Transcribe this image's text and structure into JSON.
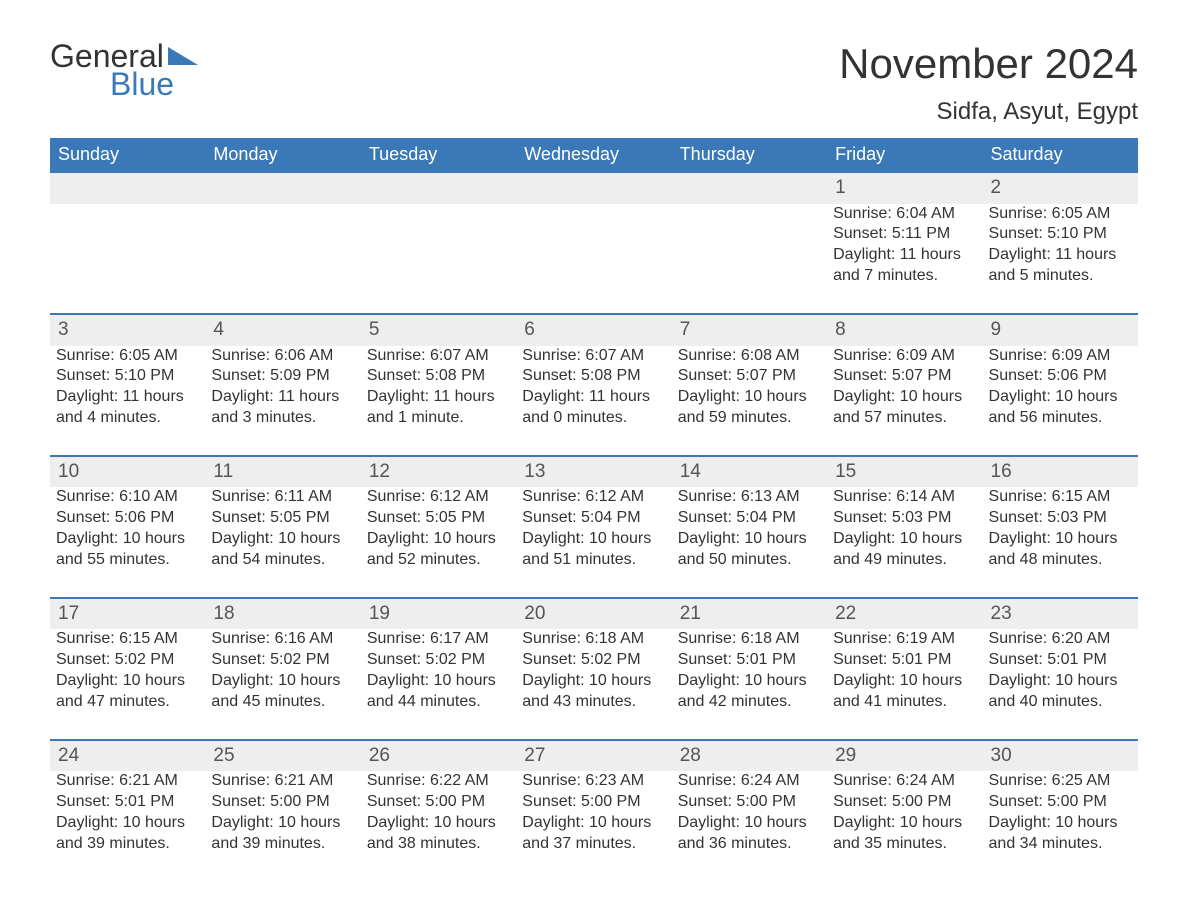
{
  "brand": {
    "general": "General",
    "blue": "Blue",
    "shape_color": "#3a78b8"
  },
  "title": "November 2024",
  "location": "Sidfa, Asyut, Egypt",
  "colors": {
    "header_bg": "#3a78b8",
    "header_text": "#ffffff",
    "day_header_bg": "#eeeeee",
    "row_border": "#3a78b8",
    "body_text": "#333333",
    "page_bg": "#ffffff"
  },
  "fonts": {
    "title_size_pt": 32,
    "location_size_pt": 18,
    "header_size_pt": 14,
    "daynum_size_pt": 14,
    "body_size_pt": 12
  },
  "layout": {
    "columns": 7,
    "rows": 5,
    "start_day_index": 5
  },
  "weekdays": [
    "Sunday",
    "Monday",
    "Tuesday",
    "Wednesday",
    "Thursday",
    "Friday",
    "Saturday"
  ],
  "days": [
    {
      "n": 1,
      "sunrise": "6:04 AM",
      "sunset": "5:11 PM",
      "daylight": "11 hours and 7 minutes."
    },
    {
      "n": 2,
      "sunrise": "6:05 AM",
      "sunset": "5:10 PM",
      "daylight": "11 hours and 5 minutes."
    },
    {
      "n": 3,
      "sunrise": "6:05 AM",
      "sunset": "5:10 PM",
      "daylight": "11 hours and 4 minutes."
    },
    {
      "n": 4,
      "sunrise": "6:06 AM",
      "sunset": "5:09 PM",
      "daylight": "11 hours and 3 minutes."
    },
    {
      "n": 5,
      "sunrise": "6:07 AM",
      "sunset": "5:08 PM",
      "daylight": "11 hours and 1 minute."
    },
    {
      "n": 6,
      "sunrise": "6:07 AM",
      "sunset": "5:08 PM",
      "daylight": "11 hours and 0 minutes."
    },
    {
      "n": 7,
      "sunrise": "6:08 AM",
      "sunset": "5:07 PM",
      "daylight": "10 hours and 59 minutes."
    },
    {
      "n": 8,
      "sunrise": "6:09 AM",
      "sunset": "5:07 PM",
      "daylight": "10 hours and 57 minutes."
    },
    {
      "n": 9,
      "sunrise": "6:09 AM",
      "sunset": "5:06 PM",
      "daylight": "10 hours and 56 minutes."
    },
    {
      "n": 10,
      "sunrise": "6:10 AM",
      "sunset": "5:06 PM",
      "daylight": "10 hours and 55 minutes."
    },
    {
      "n": 11,
      "sunrise": "6:11 AM",
      "sunset": "5:05 PM",
      "daylight": "10 hours and 54 minutes."
    },
    {
      "n": 12,
      "sunrise": "6:12 AM",
      "sunset": "5:05 PM",
      "daylight": "10 hours and 52 minutes."
    },
    {
      "n": 13,
      "sunrise": "6:12 AM",
      "sunset": "5:04 PM",
      "daylight": "10 hours and 51 minutes."
    },
    {
      "n": 14,
      "sunrise": "6:13 AM",
      "sunset": "5:04 PM",
      "daylight": "10 hours and 50 minutes."
    },
    {
      "n": 15,
      "sunrise": "6:14 AM",
      "sunset": "5:03 PM",
      "daylight": "10 hours and 49 minutes."
    },
    {
      "n": 16,
      "sunrise": "6:15 AM",
      "sunset": "5:03 PM",
      "daylight": "10 hours and 48 minutes."
    },
    {
      "n": 17,
      "sunrise": "6:15 AM",
      "sunset": "5:02 PM",
      "daylight": "10 hours and 47 minutes."
    },
    {
      "n": 18,
      "sunrise": "6:16 AM",
      "sunset": "5:02 PM",
      "daylight": "10 hours and 45 minutes."
    },
    {
      "n": 19,
      "sunrise": "6:17 AM",
      "sunset": "5:02 PM",
      "daylight": "10 hours and 44 minutes."
    },
    {
      "n": 20,
      "sunrise": "6:18 AM",
      "sunset": "5:02 PM",
      "daylight": "10 hours and 43 minutes."
    },
    {
      "n": 21,
      "sunrise": "6:18 AM",
      "sunset": "5:01 PM",
      "daylight": "10 hours and 42 minutes."
    },
    {
      "n": 22,
      "sunrise": "6:19 AM",
      "sunset": "5:01 PM",
      "daylight": "10 hours and 41 minutes."
    },
    {
      "n": 23,
      "sunrise": "6:20 AM",
      "sunset": "5:01 PM",
      "daylight": "10 hours and 40 minutes."
    },
    {
      "n": 24,
      "sunrise": "6:21 AM",
      "sunset": "5:01 PM",
      "daylight": "10 hours and 39 minutes."
    },
    {
      "n": 25,
      "sunrise": "6:21 AM",
      "sunset": "5:00 PM",
      "daylight": "10 hours and 39 minutes."
    },
    {
      "n": 26,
      "sunrise": "6:22 AM",
      "sunset": "5:00 PM",
      "daylight": "10 hours and 38 minutes."
    },
    {
      "n": 27,
      "sunrise": "6:23 AM",
      "sunset": "5:00 PM",
      "daylight": "10 hours and 37 minutes."
    },
    {
      "n": 28,
      "sunrise": "6:24 AM",
      "sunset": "5:00 PM",
      "daylight": "10 hours and 36 minutes."
    },
    {
      "n": 29,
      "sunrise": "6:24 AM",
      "sunset": "5:00 PM",
      "daylight": "10 hours and 35 minutes."
    },
    {
      "n": 30,
      "sunrise": "6:25 AM",
      "sunset": "5:00 PM",
      "daylight": "10 hours and 34 minutes."
    }
  ],
  "labels": {
    "sunrise": "Sunrise:",
    "sunset": "Sunset:",
    "daylight": "Daylight:"
  }
}
